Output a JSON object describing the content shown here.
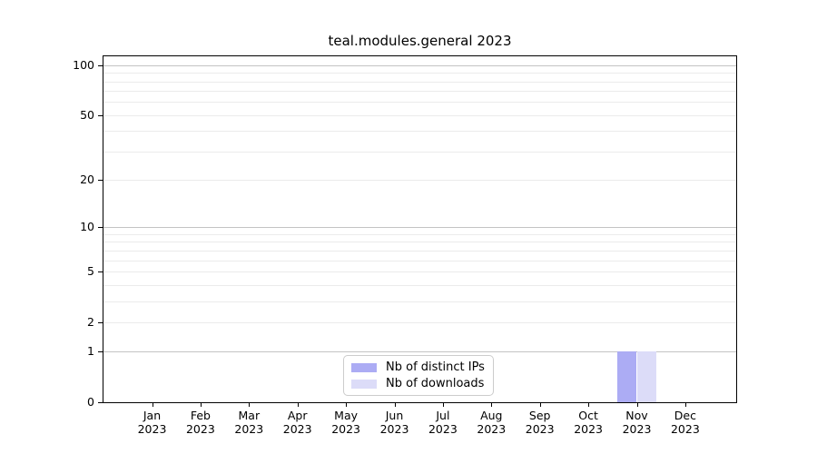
{
  "window": {
    "title": "teal.modules.general 2023"
  },
  "chart_data": {
    "type": "bar",
    "title": "teal.modules.general 2023",
    "categories": [
      "Jan",
      "Feb",
      "Mar",
      "Apr",
      "May",
      "Jun",
      "Jul",
      "Aug",
      "Sep",
      "Oct",
      "Nov",
      "Dec"
    ],
    "x_year_label": "2023",
    "series": [
      {
        "name": "Nb of distinct IPs",
        "color": "#acacf4",
        "values": [
          0,
          0,
          0,
          0,
          0,
          0,
          0,
          0,
          0,
          0,
          1,
          0
        ]
      },
      {
        "name": "Nb of downloads",
        "color": "#dcdcf8",
        "values": [
          0,
          0,
          0,
          0,
          0,
          0,
          0,
          0,
          0,
          0,
          1,
          0
        ]
      }
    ],
    "yscale": "log1p",
    "ylim": [
      0,
      113
    ],
    "yticks": [
      0,
      1,
      2,
      5,
      10,
      20,
      50,
      100
    ],
    "ytick_major": [
      1,
      10,
      100
    ],
    "yminor_gridlines": [
      3,
      4,
      6,
      7,
      8,
      9,
      30,
      40,
      60,
      70,
      80,
      90
    ],
    "grid": "horizontal",
    "legend_position": "lower center inside"
  },
  "legend": {
    "items": [
      {
        "label": "Nb of distinct IPs",
        "swatch": "#acacf4"
      },
      {
        "label": "Nb of downloads",
        "swatch": "#dcdcf8"
      }
    ]
  },
  "colors": {
    "background": "#ffffff",
    "axis": "#000000",
    "grid_major": "#c4c4c4",
    "grid_minor": "#ebebeb",
    "legend_border": "#cccccc",
    "bar_distinct_ips": "#acacf4",
    "bar_downloads": "#dcdcf8",
    "text": "#000000"
  }
}
